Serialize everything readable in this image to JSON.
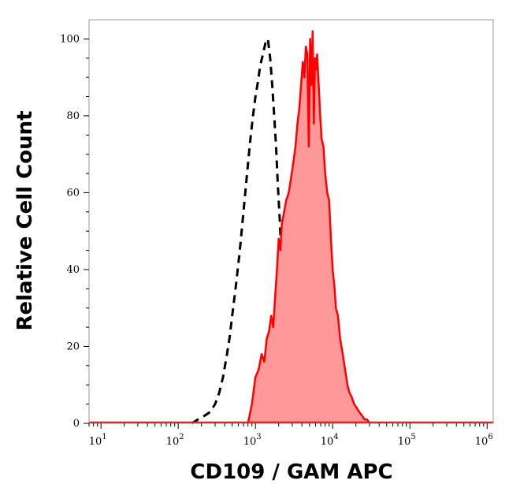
{
  "chart_data": {
    "type": "area",
    "title": "",
    "xlabel": "CD109 / GAM APC",
    "ylabel": "Relative Cell Count",
    "x_scale": "log",
    "xlim": [
      7,
      1200000
    ],
    "ylim": [
      0,
      105
    ],
    "x_ticks": [
      {
        "base": "10",
        "exp": "1",
        "value": 10
      },
      {
        "base": "10",
        "exp": "2",
        "value": 100
      },
      {
        "base": "10",
        "exp": "3",
        "value": 1000
      },
      {
        "base": "10",
        "exp": "4",
        "value": 10000
      },
      {
        "base": "10",
        "exp": "5",
        "value": 100000
      },
      {
        "base": "10",
        "exp": "6",
        "value": 1000000
      }
    ],
    "y_ticks": [
      "0",
      "20",
      "40",
      "60",
      "80",
      "100"
    ],
    "grid": false,
    "legend": "none",
    "series": [
      {
        "style": "dashed",
        "color": "#000000",
        "fill": "none",
        "x": [
          150,
          180,
          220,
          260,
          300,
          340,
          380,
          420,
          460,
          500,
          560,
          620,
          700,
          780,
          850,
          930,
          1000,
          1080,
          1150,
          1250,
          1350,
          1450,
          1550,
          1650,
          1750,
          1850,
          1950,
          2050,
          2150,
          2300,
          2450,
          2600,
          2800,
          3000,
          3200,
          3500,
          3800,
          4200
        ],
        "y": [
          0,
          1,
          2,
          3,
          5,
          8,
          12,
          17,
          22,
          28,
          36,
          44,
          55,
          65,
          73,
          80,
          85,
          89,
          93,
          96,
          99,
          100,
          95,
          88,
          80,
          72,
          62,
          54,
          45,
          36,
          28,
          20,
          13,
          8,
          4,
          2,
          1,
          0
        ]
      },
      {
        "style": "solid",
        "color": "#ff0000",
        "fill": "#ff9999",
        "x": [
          800,
          900,
          1000,
          1100,
          1200,
          1300,
          1400,
          1500,
          1600,
          1700,
          1800,
          1900,
          2000,
          2100,
          2200,
          2350,
          2500,
          2700,
          2900,
          3100,
          3300,
          3500,
          3700,
          3900,
          4100,
          4300,
          4500,
          4700,
          4900,
          5100,
          5300,
          5500,
          5700,
          5900,
          6100,
          6300,
          6600,
          6900,
          7200,
          7600,
          8000,
          8500,
          9000,
          9500,
          10000,
          10500,
          11000,
          11700,
          12500,
          13500,
          14500,
          15500,
          16500,
          17500,
          19000,
          20500,
          22000,
          24000,
          26000,
          28000,
          30000
        ],
        "y": [
          0,
          5,
          12,
          14,
          18,
          16,
          22,
          24,
          28,
          25,
          33,
          40,
          48,
          45,
          52,
          55,
          58,
          60,
          64,
          68,
          72,
          78,
          82,
          88,
          94,
          90,
          98,
          96,
          72,
          100,
          88,
          102,
          78,
          95,
          92,
          96,
          88,
          80,
          74,
          72,
          65,
          60,
          58,
          48,
          40,
          36,
          30,
          28,
          22,
          18,
          14,
          10,
          8,
          7,
          5,
          4,
          3,
          2,
          1,
          1,
          0
        ]
      }
    ]
  }
}
